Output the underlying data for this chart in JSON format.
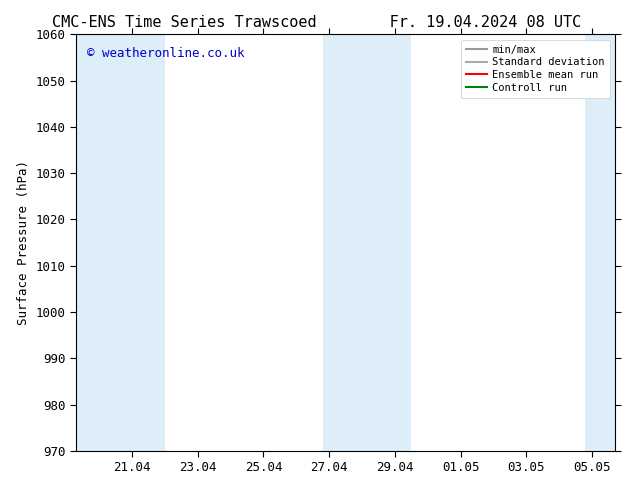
{
  "title_left": "CMC-ENS Time Series Trawscoed",
  "title_right": "Fr. 19.04.2024 08 UTC",
  "ylabel": "Surface Pressure (hPa)",
  "ylim": [
    970,
    1060
  ],
  "yticks": [
    970,
    980,
    990,
    1000,
    1010,
    1020,
    1030,
    1040,
    1050,
    1060
  ],
  "xlim_start": 19.3,
  "xlim_end": 35.7,
  "xtick_labels": [
    "21.04",
    "23.04",
    "25.04",
    "27.04",
    "29.04",
    "01.05",
    "03.05",
    "05.05"
  ],
  "xtick_positions": [
    21.0,
    23.0,
    25.0,
    27.0,
    29.0,
    31.0,
    33.0,
    35.0
  ],
  "shaded_bands": [
    {
      "x_start": 19.3,
      "x_end": 22.0,
      "color": "#ddeef8"
    },
    {
      "x_start": 26.8,
      "x_end": 29.5,
      "color": "#ddeef8"
    },
    {
      "x_start": 34.8,
      "x_end": 35.7,
      "color": "#ddeef8"
    }
  ],
  "watermark_text": "© weatheronline.co.uk",
  "watermark_color": "#0000cc",
  "bg_color": "#ffffff",
  "plot_bg_color": "#ffffff",
  "legend_items": [
    {
      "label": "min/max",
      "color": "#999999",
      "lw": 1.5,
      "style": "solid"
    },
    {
      "label": "Standard deviation",
      "color": "#aaaaaa",
      "lw": 1.5,
      "style": "solid"
    },
    {
      "label": "Ensemble mean run",
      "color": "#ff0000",
      "lw": 1.5,
      "style": "solid"
    },
    {
      "label": "Controll run",
      "color": "#008000",
      "lw": 1.5,
      "style": "solid"
    }
  ],
  "grid_color": "#dddddd",
  "tick_color": "#000000",
  "title_fontsize": 11,
  "label_fontsize": 9,
  "tick_fontsize": 9,
  "watermark_fontsize": 9
}
